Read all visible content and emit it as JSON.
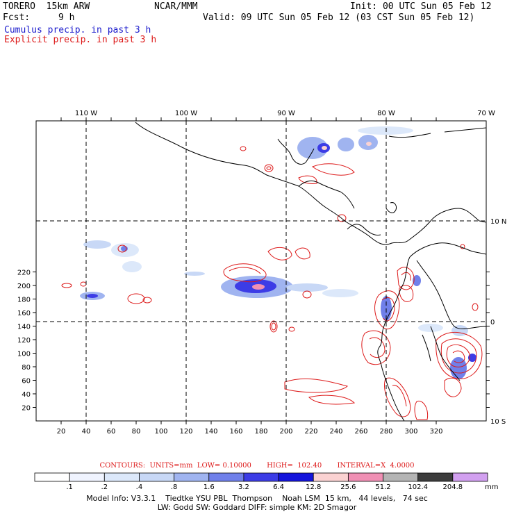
{
  "header": {
    "model": "TORERO  15km ARW",
    "org": "NCAR/MMM",
    "init": "Init: 00 UTC Sun 05 Feb 12",
    "fcst_label": "Fcst:",
    "fcst_value": "9 h",
    "valid": "Valid: 09 UTC Sun 05 Feb 12 (03 CST Sun 05 Feb 12)",
    "cumulus": "Cumulus precip. in past 3 h",
    "explicit": "Explicit precip. in past 3 h"
  },
  "map": {
    "top_longitudes": [
      "110 W",
      "100 W",
      "90 W",
      "80 W",
      "70 W"
    ],
    "right_latitudes": [
      "10 N",
      "0",
      "10 S"
    ],
    "y_grid_ticks": [
      "20",
      "40",
      "60",
      "80",
      "100",
      "120",
      "140",
      "160",
      "180",
      "200",
      "220"
    ],
    "x_grid_ticks": [
      "20",
      "40",
      "60",
      "80",
      "100",
      "120",
      "140",
      "160",
      "180",
      "200",
      "220",
      "240",
      "260",
      "280",
      "300",
      "320"
    ]
  },
  "contours": {
    "label": "CONTOURS:  UNITS=mm  LOW= 0.10000       HIGH=  102.40       INTERVAL=X  4.0000"
  },
  "colorbar": {
    "labels": [
      ".1",
      ".2",
      ".4",
      ".8",
      "1.6",
      "3.2",
      "6.4",
      "12.8",
      "25.6",
      "51.2",
      "102.4",
      "204.8"
    ],
    "unit": "mm",
    "colors": [
      "#ffffff",
      "#f0f4ff",
      "#dce8fa",
      "#c8d8f6",
      "#a0b4f0",
      "#7080ea",
      "#3c3ce6",
      "#1414dc",
      "#fad2d2",
      "#f090b4",
      "#b4b4b4",
      "#3c3c3c",
      "#d2a0f0"
    ]
  },
  "model_info": {
    "line1": "Model Info: V3.3.1    Tiedtke YSU PBL  Thompson    Noah LSM  15 km,   44 levels,   74 sec",
    "line2": "LW: Godd SW: Goddard DIFF: simple KM: 2D Smagor"
  }
}
